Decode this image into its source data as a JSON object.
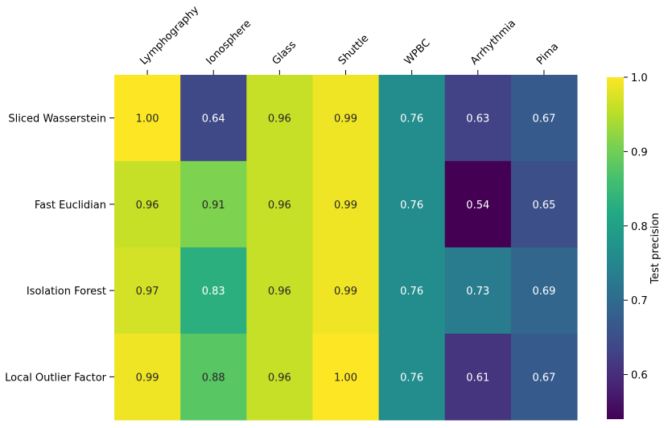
{
  "chart_data": {
    "type": "heatmap",
    "title": "",
    "columns": [
      "Lymphography",
      "Ionosphere",
      "Glass",
      "Shuttle",
      "WPBC",
      "Arrhythmia",
      "Pima"
    ],
    "rows": [
      "Sliced Wasserstein",
      "Fast Euclidian",
      "Isolation Forest",
      "Local Outlier Factor"
    ],
    "values": [
      [
        1.0,
        0.64,
        0.96,
        0.99,
        0.76,
        0.63,
        0.67
      ],
      [
        0.96,
        0.91,
        0.96,
        0.99,
        0.76,
        0.54,
        0.65
      ],
      [
        0.97,
        0.83,
        0.96,
        0.99,
        0.76,
        0.73,
        0.69
      ],
      [
        0.99,
        0.88,
        0.96,
        1.0,
        0.76,
        0.61,
        0.67
      ]
    ],
    "labels": [
      [
        "1.00",
        "0.64",
        "0.96",
        "0.99",
        "0.76",
        "0.63",
        "0.67"
      ],
      [
        "0.96",
        "0.91",
        "0.96",
        "0.99",
        "0.76",
        "0.54",
        "0.65"
      ],
      [
        "0.97",
        "0.83",
        "0.96",
        "0.99",
        "0.76",
        "0.73",
        "0.69"
      ],
      [
        "0.99",
        "0.88",
        "0.96",
        "1.00",
        "0.76",
        "0.61",
        "0.67"
      ]
    ],
    "colormap": "viridis",
    "colorbar": {
      "label": "Test precision",
      "range": [
        0.54,
        1.0
      ],
      "ticks": [
        0.6,
        0.7,
        0.8,
        0.9,
        1.0
      ],
      "tick_labels": [
        "0.6",
        "0.7",
        "0.8",
        "0.9",
        "1.0"
      ]
    }
  }
}
